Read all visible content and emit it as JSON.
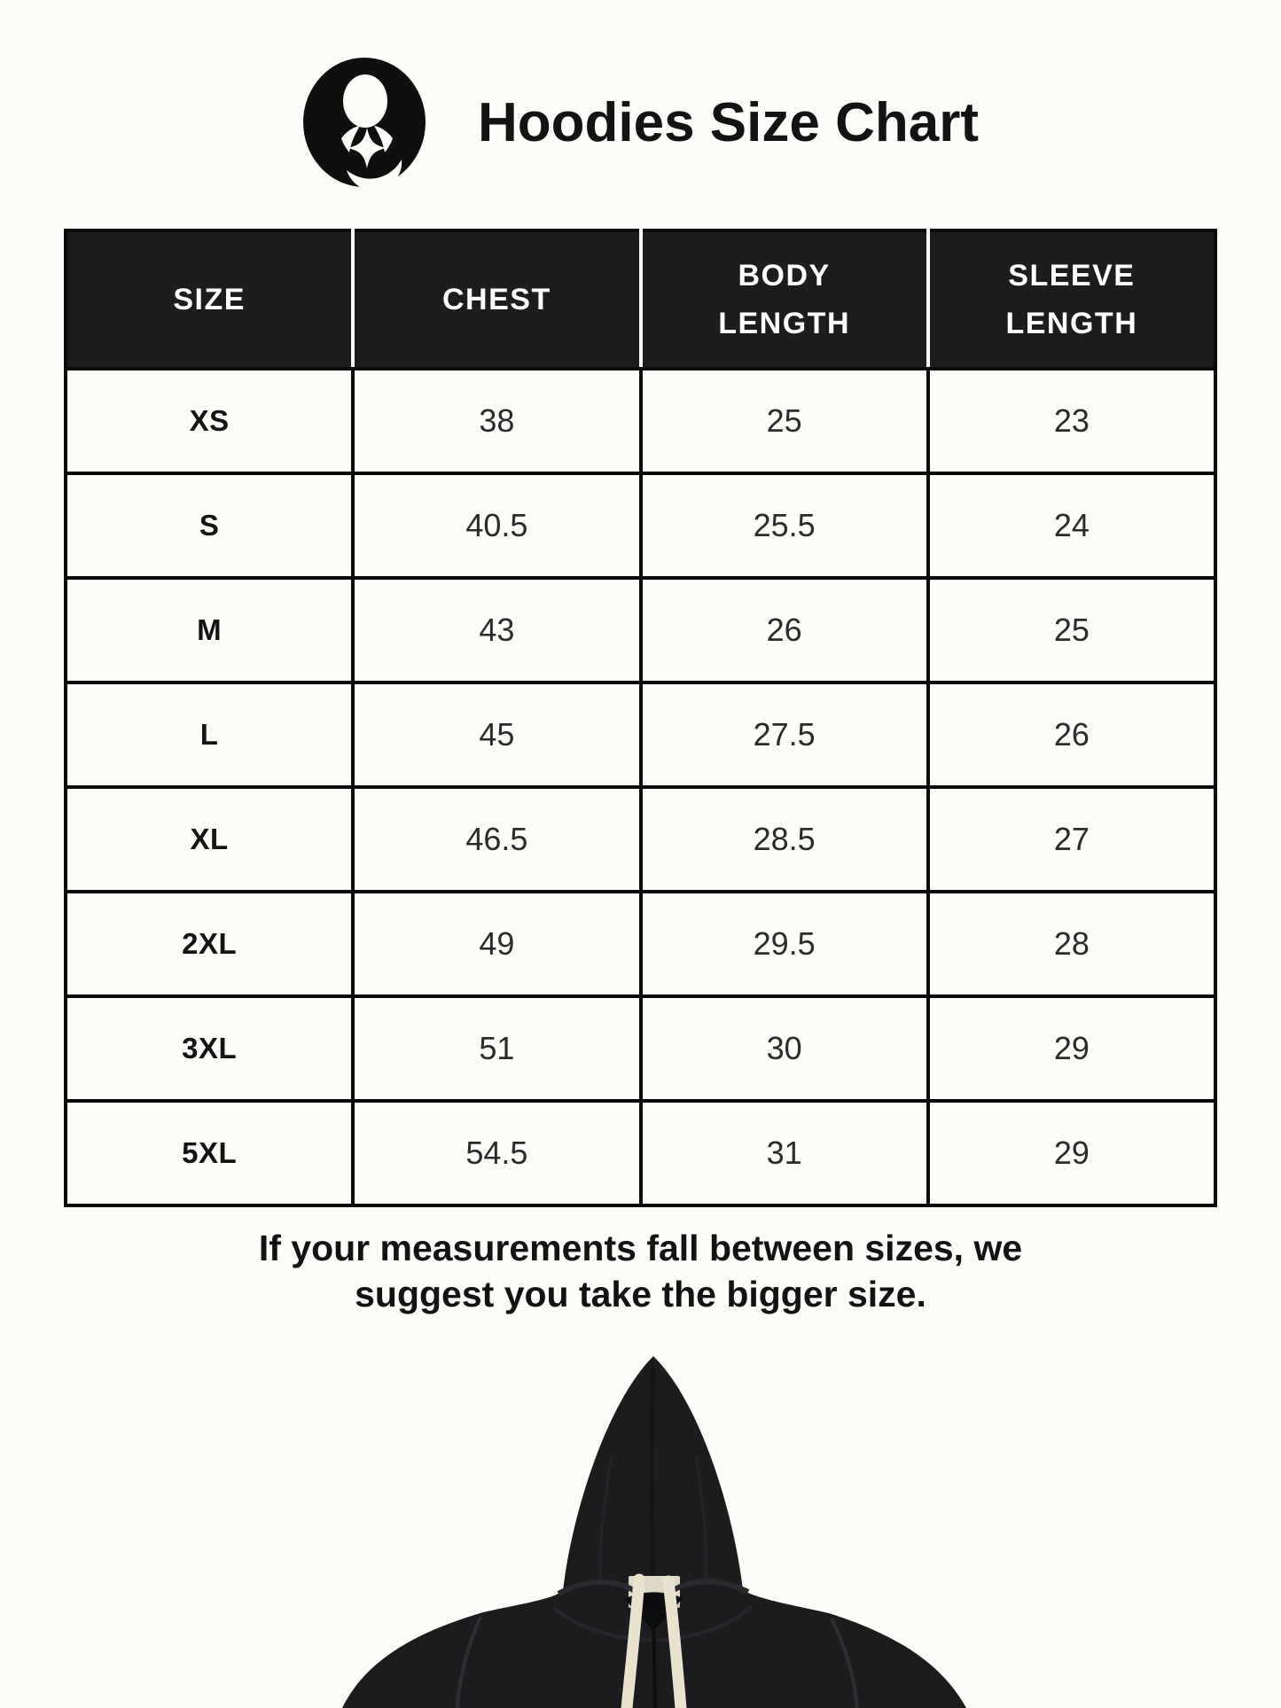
{
  "page": {
    "title": "Hoodies Size Chart"
  },
  "logo": {
    "name": "mother-and-child-brand-logo",
    "color": "#0f0f0f"
  },
  "table": {
    "headers": [
      "SIZE",
      "CHEST",
      "BODY LENGTH",
      "SLEEVE LENGTH"
    ],
    "columns_order": [
      "size",
      "chest",
      "body_length",
      "sleeve_length"
    ],
    "rows": [
      {
        "size": "XS",
        "chest": "38",
        "body_length": "25",
        "sleeve_length": "23"
      },
      {
        "size": "S",
        "chest": "40.5",
        "body_length": "25.5",
        "sleeve_length": "24"
      },
      {
        "size": "M",
        "chest": "43",
        "body_length": "26",
        "sleeve_length": "25"
      },
      {
        "size": "L",
        "chest": "45",
        "body_length": "27.5",
        "sleeve_length": "26"
      },
      {
        "size": "XL",
        "chest": "46.5",
        "body_length": "28.5",
        "sleeve_length": "27"
      },
      {
        "size": "2XL",
        "chest": "49",
        "body_length": "29.5",
        "sleeve_length": "28"
      },
      {
        "size": "3XL",
        "chest": "51",
        "body_length": "30",
        "sleeve_length": "29"
      },
      {
        "size": "5XL",
        "chest": "54.5",
        "body_length": "31",
        "sleeve_length": "29"
      }
    ]
  },
  "note": {
    "line1": "If your measurements fall between sizes, we",
    "line2": "suggest you take the bigger size."
  },
  "hoodie_image": {
    "description": "black pullover hoodie with cream drawstrings, front view, cropped at bottom"
  },
  "colors": {
    "page_bg": "#fcfcf9",
    "table_header_bg": "#1d1d1d",
    "table_border": "#0a0a0a",
    "header_separator": "#fafaf6",
    "hoodie_fabric": "#1c1c1f",
    "drawstring": "#e9e2cf",
    "label_tag": "#ded8c6"
  }
}
